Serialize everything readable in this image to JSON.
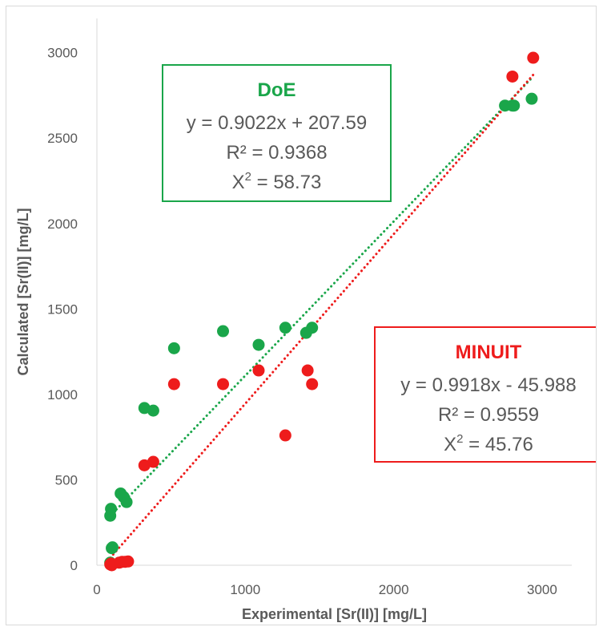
{
  "chart_data": {
    "type": "scatter",
    "xlabel": "Experimental [Sr(II)] [mg/L]",
    "ylabel": "Calculated [Sr(II)] [mg/L]",
    "xlim": [
      0,
      3200
    ],
    "ylim": [
      0,
      3200
    ],
    "x_ticks": [
      0,
      1000,
      2000,
      3000
    ],
    "y_ticks": [
      0,
      500,
      1000,
      1500,
      2000,
      2500,
      3000
    ],
    "grid": false,
    "series": [
      {
        "name": "DoE",
        "color": "#1aa64a",
        "points": [
          [
            90,
            290
          ],
          [
            95,
            330
          ],
          [
            100,
            100
          ],
          [
            105,
            105
          ],
          [
            90,
            15
          ],
          [
            95,
            5
          ],
          [
            160,
            420
          ],
          [
            180,
            400
          ],
          [
            200,
            370
          ],
          [
            320,
            920
          ],
          [
            380,
            905
          ],
          [
            520,
            1270
          ],
          [
            850,
            1370
          ],
          [
            1090,
            1290
          ],
          [
            1270,
            1390
          ],
          [
            1410,
            1360
          ],
          [
            1450,
            1390
          ],
          [
            2750,
            2690
          ],
          [
            2800,
            2690
          ],
          [
            2810,
            2690
          ],
          [
            2930,
            2730
          ]
        ],
        "trendline": {
          "slope": 0.9022,
          "intercept": 207.59,
          "x_range": [
            90,
            2930
          ]
        },
        "annotation": {
          "title": "DoE",
          "equation": "y = 0.9022x + 207.59",
          "r2": "R² = 0.9368",
          "x2_base": "X",
          "x2_rest": " = 58.73"
        }
      },
      {
        "name": "MINUIT",
        "color": "#ee1c1c",
        "points": [
          [
            90,
            5
          ],
          [
            95,
            10
          ],
          [
            100,
            0
          ],
          [
            150,
            15
          ],
          [
            170,
            20
          ],
          [
            190,
            20
          ],
          [
            210,
            22
          ],
          [
            320,
            585
          ],
          [
            380,
            605
          ],
          [
            520,
            1060
          ],
          [
            850,
            1060
          ],
          [
            1090,
            1140
          ],
          [
            1270,
            760
          ],
          [
            1420,
            1140
          ],
          [
            1450,
            1060
          ],
          [
            2800,
            2860
          ],
          [
            2940,
            2970
          ]
        ],
        "trendline": {
          "slope": 0.9918,
          "intercept": -45.988,
          "x_range": [
            90,
            2940
          ]
        },
        "annotation": {
          "title": "MINUIT",
          "equation": "y = 0.9918x - 45.988",
          "r2": "R² = 0.9559",
          "x2_base": "X",
          "x2_rest": " = 45.76"
        }
      }
    ]
  }
}
